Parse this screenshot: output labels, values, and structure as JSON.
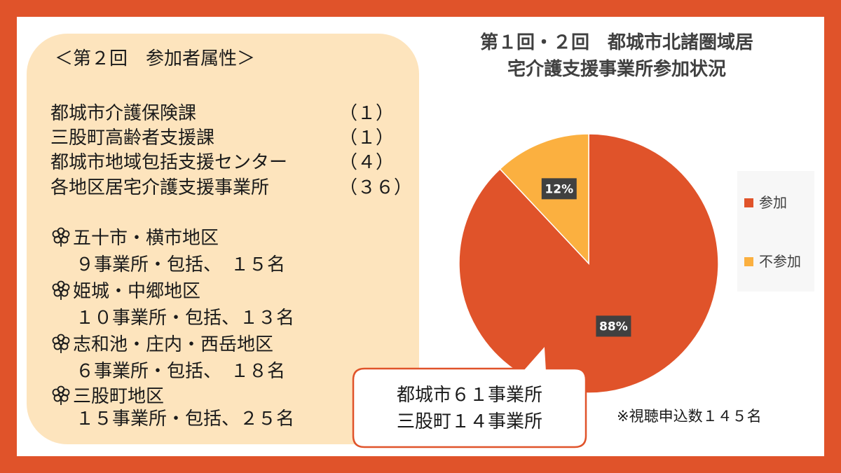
{
  "panel": {
    "title": "＜第２回　参加者属性＞",
    "categories": [
      {
        "name": "都城市介護保険課",
        "count": "（１）"
      },
      {
        "name": "三股町高齢者支援課",
        "count": "（１）"
      },
      {
        "name": "都城市地域包括支援センター",
        "count": "（４）"
      },
      {
        "name": "各地区居宅介護支援事業所",
        "count": "（３６）"
      }
    ],
    "areas": [
      {
        "icon": "flower-icon",
        "name": "五十市・横市地区",
        "detail": "９事業所・包括、　１５名"
      },
      {
        "icon": "flower-icon",
        "name": "姫城・中郷地区",
        "detail": "１０事業所・包括、１３名"
      },
      {
        "icon": "flower-icon",
        "name": "志和池・庄内・西岳地区",
        "detail": "６事業所・包括、　１８名"
      },
      {
        "icon": "flower-icon",
        "name": "三股町地区",
        "detail": "１５事業所・包括、２５名"
      }
    ]
  },
  "chart_data": {
    "type": "pie",
    "title_lines": [
      "第１回・２回　都城市北諸圏域居",
      "宅介護支援事業所参加状況"
    ],
    "categories": [
      "参加",
      "不参加"
    ],
    "values": [
      88,
      12
    ],
    "value_labels": [
      "88%",
      "12%"
    ],
    "colors": [
      "#e0532a",
      "#fbb040"
    ],
    "legend_placement": "right"
  },
  "callout": {
    "lines": [
      "都城市６１事業所",
      "三股町１４事業所"
    ]
  },
  "footnote": "※視聴申込数１４５名",
  "colors": {
    "background": "#e0532a",
    "panel": "#fde4bd",
    "label_box": "#404040"
  }
}
